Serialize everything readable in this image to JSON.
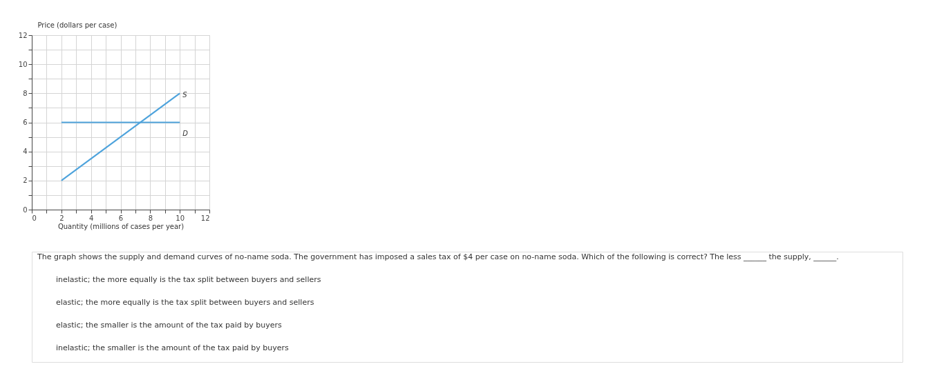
{
  "chart_data": {
    "type": "line",
    "xlabel": "Quantity (millions of cases per year)",
    "ylabel": "Price (dollars per case)",
    "series": [
      {
        "name": "S",
        "color": "#4ea3dc",
        "values": [
          2,
          8
        ]
      },
      {
        "name": "D",
        "color": "#4ea3dc",
        "values": [
          6,
          6
        ]
      }
    ],
    "x": [
      2,
      10
    ],
    "xlim": [
      0,
      12
    ],
    "ylim": [
      0,
      12
    ],
    "xticks": [
      0,
      {
        "value": 1,
        "label": null
      },
      2,
      {
        "value": 3,
        "label": null
      },
      4,
      {
        "value": 5,
        "label": null
      },
      6,
      {
        "value": 7,
        "label": null
      },
      8,
      {
        "value": 9,
        "label": null
      },
      10,
      {
        "value": 11,
        "label": null
      },
      12
    ],
    "yticks": [
      0,
      {
        "value": 1,
        "label": null
      },
      2,
      {
        "value": 3,
        "label": null
      },
      4,
      {
        "value": 5,
        "label": null
      },
      6,
      {
        "value": 7,
        "label": null
      },
      8,
      {
        "value": 9,
        "label": null
      },
      10,
      {
        "value": 11,
        "label": null
      },
      12
    ],
    "grid": true,
    "marker": "none",
    "line_style": "solid",
    "legend": false,
    "annotations": [
      "The graph shows the supply and demand curves of no-name soda.  The government has imposed a sales tax of $4 per case on no-name soda.  Which of the following is correct? The less ______ the supply, ______.",
      "inelastic; the more equally is the tax split between buyers and sellers",
      "elastic; the more equally is the tax split between buyers and sellers",
      "elastic; the smaller is the amount of the tax paid by buyers",
      "inelastic; the smaller is the amount of the tax paid by buyers"
    ]
  }
}
